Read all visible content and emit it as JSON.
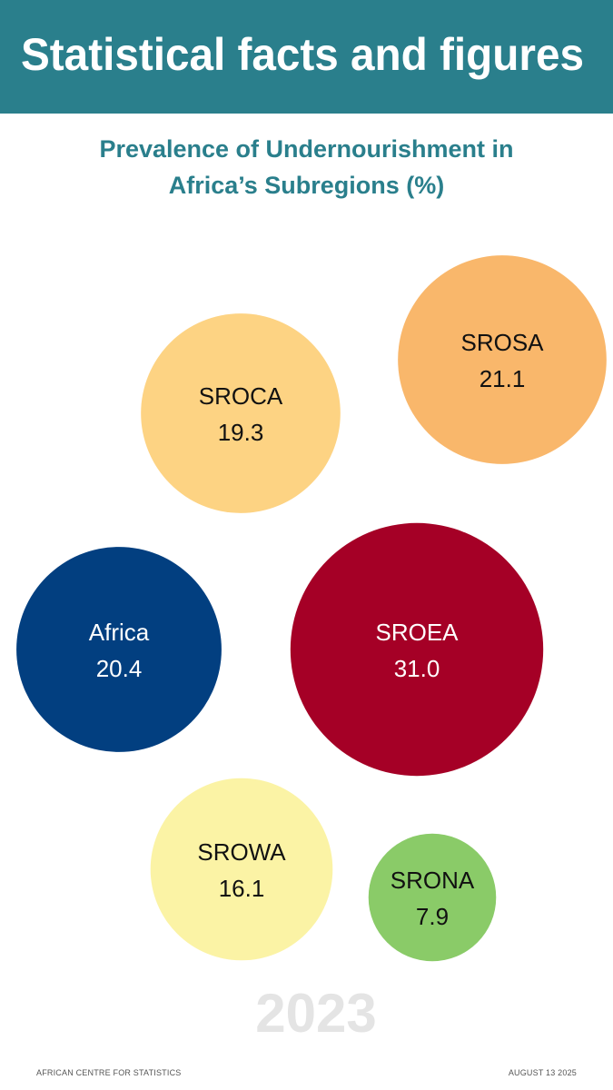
{
  "header": {
    "title": "Statistical facts and figures"
  },
  "chart_data": {
    "type": "bubble",
    "title": "Prevalence of Undernourishment in Africa’s Subregions (%)",
    "categories": [
      "SROCA",
      "SROSA",
      "Africa",
      "SROEA",
      "SROWA",
      "SRONA"
    ],
    "values": [
      19.3,
      21.1,
      20.4,
      31,
      16.1,
      7.9
    ],
    "value_labels": [
      "19.3",
      "21.1",
      "20.4",
      "31.0",
      "16.1",
      "7.9"
    ],
    "colors": [
      "#fdd383",
      "#f9b76b",
      "#023f80",
      "#a50026",
      "#fbf3a5",
      "#8acb68"
    ],
    "annotation": "2023"
  },
  "footer": {
    "left": "AFRICAN CENTRE FOR STATISTICS",
    "right": "AUGUST 13 2025"
  }
}
